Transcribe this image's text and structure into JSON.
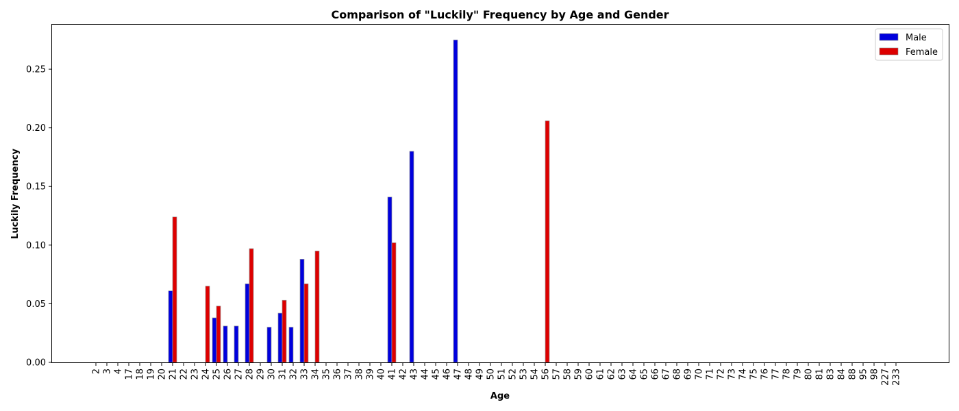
{
  "chart_data": {
    "type": "bar",
    "title": "Comparison of \"Luckily\" Frequency by Age and Gender",
    "xlabel": "Age",
    "ylabel": "Luckily Frequency",
    "ylim": [
      0,
      0.288
    ],
    "yticks": [
      "0.00",
      "0.05",
      "0.10",
      "0.15",
      "0.20",
      "0.25"
    ],
    "grid": false,
    "legend_position": "top-right",
    "categories": [
      "2",
      "3",
      "4",
      "17",
      "18",
      "19",
      "20",
      "21",
      "22",
      "23",
      "24",
      "25",
      "26",
      "27",
      "28",
      "29",
      "30",
      "31",
      "32",
      "33",
      "34",
      "35",
      "36",
      "37",
      "38",
      "39",
      "40",
      "41",
      "42",
      "43",
      "44",
      "45",
      "46",
      "47",
      "48",
      "49",
      "50",
      "51",
      "52",
      "53",
      "54",
      "56",
      "57",
      "58",
      "59",
      "60",
      "61",
      "62",
      "63",
      "64",
      "65",
      "66",
      "67",
      "68",
      "69",
      "70",
      "71",
      "72",
      "73",
      "74",
      "75",
      "76",
      "77",
      "78",
      "79",
      "80",
      "81",
      "83",
      "84",
      "88",
      "95",
      "98",
      "227",
      "233"
    ],
    "series": [
      {
        "name": "Male",
        "color": "#0000dd",
        "values": [
          0,
          0,
          0,
          0,
          0,
          0,
          0,
          0.061,
          0,
          0,
          0,
          0.038,
          0.031,
          0.031,
          0.067,
          0,
          0.03,
          0.042,
          0.03,
          0.088,
          0,
          0,
          0,
          0,
          0,
          0,
          0,
          0.141,
          0,
          0.18,
          0,
          0,
          0,
          0.275,
          0,
          0,
          0,
          0,
          0,
          0,
          0,
          0,
          0,
          0,
          0,
          0,
          0,
          0,
          0,
          0,
          0,
          0,
          0,
          0,
          0,
          0,
          0,
          0,
          0,
          0,
          0,
          0,
          0,
          0,
          0,
          0,
          0,
          0,
          0,
          0,
          0,
          0,
          0,
          0
        ]
      },
      {
        "name": "Female",
        "color": "#dd0000",
        "values": [
          0,
          0,
          0,
          0,
          0,
          0,
          0,
          0.124,
          0,
          0,
          0.065,
          0.048,
          0,
          0,
          0.097,
          0,
          0,
          0.053,
          0,
          0.067,
          0.095,
          0,
          0,
          0,
          0,
          0,
          0,
          0.102,
          0,
          0,
          0,
          0,
          0,
          0,
          0,
          0,
          0,
          0,
          0,
          0,
          0,
          0.206,
          0,
          0,
          0,
          0,
          0,
          0,
          0,
          0,
          0,
          0,
          0,
          0,
          0,
          0,
          0,
          0,
          0,
          0,
          0,
          0,
          0,
          0,
          0,
          0,
          0,
          0,
          0,
          0,
          0,
          0,
          0,
          0
        ]
      }
    ]
  }
}
